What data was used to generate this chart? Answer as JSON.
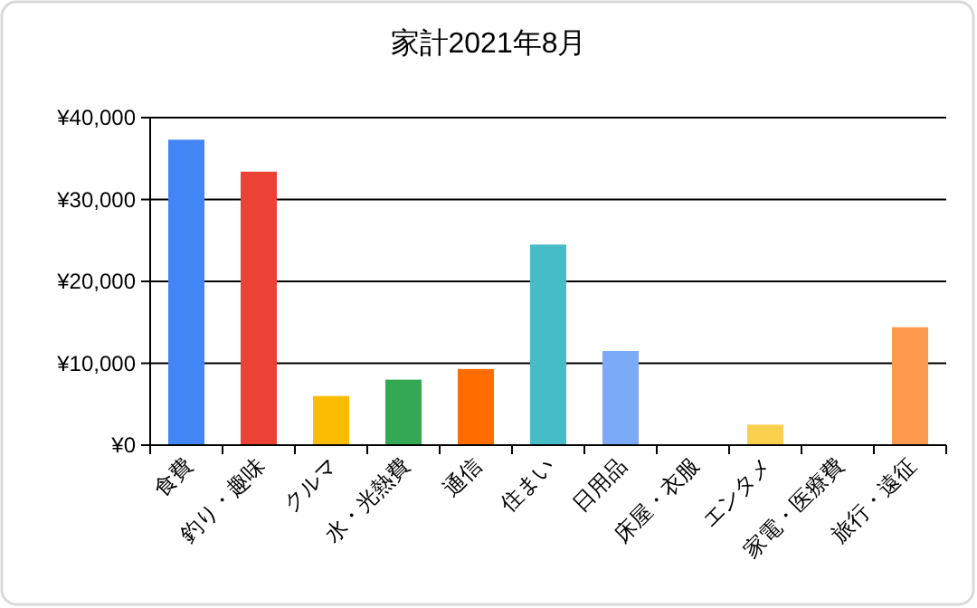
{
  "chart_data": {
    "type": "bar",
    "title": "家計2021年8月",
    "categories": [
      "食費",
      "釣り・趣味",
      "クルマ",
      "水・光熱費",
      "通信",
      "住まい",
      "日用品",
      "床屋・衣服",
      "エンタメ",
      "家電・医療費",
      "旅行・遠征"
    ],
    "values": [
      37300,
      33400,
      6000,
      8000,
      9300,
      24500,
      11500,
      0,
      2500,
      0,
      14400
    ],
    "colors": [
      "#4285f4",
      "#ea4335",
      "#fbbc04",
      "#34a853",
      "#ff6d01",
      "#46bdc6",
      "#7baaf7",
      "#f07b72",
      "#fcd04f",
      "#71c287",
      "#ff994d"
    ],
    "ylim": [
      0,
      40000
    ],
    "yticks": [
      {
        "value": 0,
        "label": "¥0"
      },
      {
        "value": 10000,
        "label": "¥10,000"
      },
      {
        "value": 20000,
        "label": "¥20,000"
      },
      {
        "value": 30000,
        "label": "¥30,000"
      },
      {
        "value": 40000,
        "label": "¥40,000"
      }
    ],
    "grid": "y"
  }
}
